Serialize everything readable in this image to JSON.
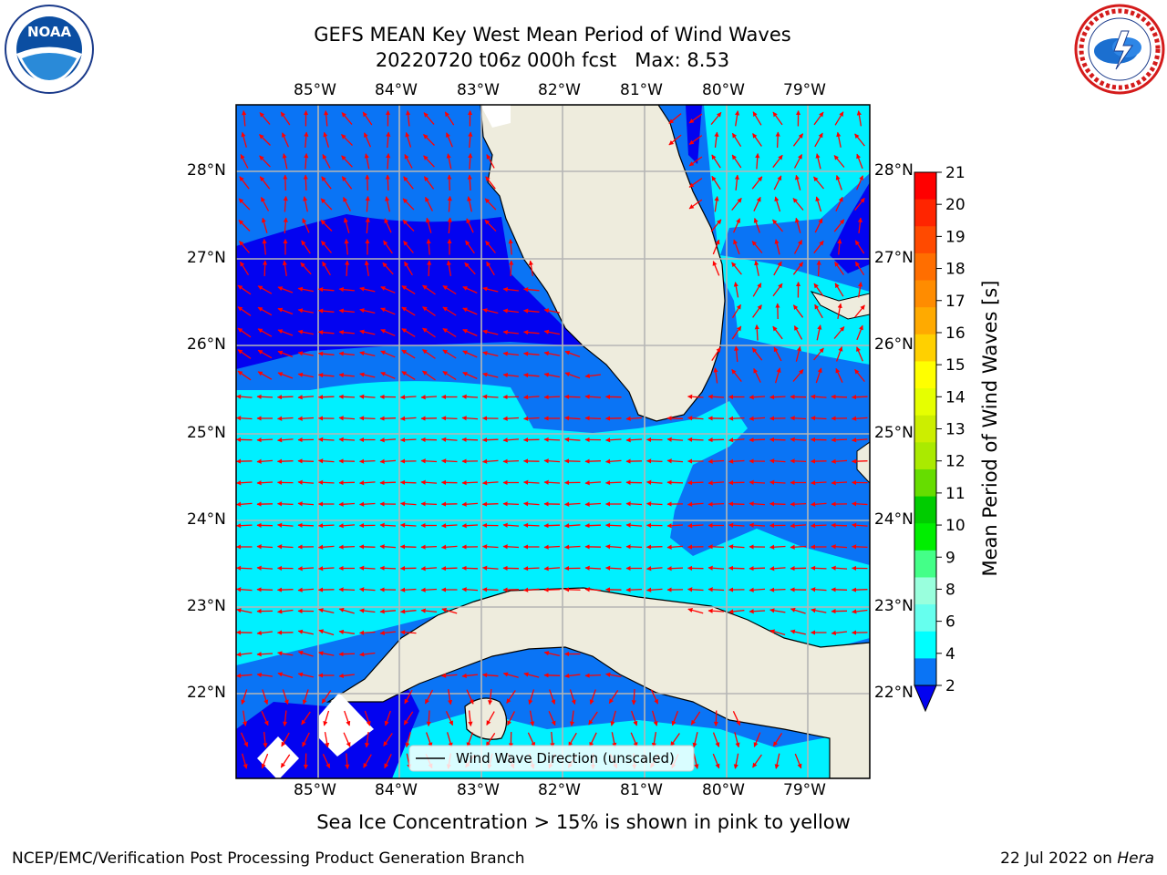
{
  "title": {
    "line1": "GEFS MEAN Key West Mean Period of Wind Waves",
    "line2": "20220720 t06z 000h fcst   Max: 8.53"
  },
  "logos": {
    "left": {
      "text": "NOAA",
      "ring_top": "NATIONAL OCEANIC AND ATMOSPHERIC ADMINISTRATION",
      "ring_bottom": "U.S. DEPARTMENT OF COMMERCE"
    },
    "right": {
      "ring": "NATIONAL WEATHER SERVICE"
    }
  },
  "map": {
    "lon_labels": [
      "85°W",
      "84°W",
      "83°W",
      "82°W",
      "81°W",
      "80°W",
      "79°W"
    ],
    "lat_labels": [
      "28°N",
      "27°N",
      "26°N",
      "25°N",
      "24°N",
      "23°N",
      "22°N"
    ],
    "legend_label": "Wind Wave Direction (unscaled)",
    "colors": {
      "ocean_2_4": "#0a74f5",
      "ocean_lt2": "#0303f0",
      "ocean_4_6": "#00f0ff",
      "land": "#eeecdd",
      "arrow": "#ff0000",
      "grid": "#b5b5b5"
    }
  },
  "colorbar": {
    "label": "Mean Period of Wind Waves [s]",
    "ticks": [
      "21",
      "20",
      "19",
      "18",
      "17",
      "16",
      "15",
      "14",
      "13",
      "12",
      "11",
      "10",
      "9",
      "8",
      "6",
      "4",
      "2"
    ],
    "colors": [
      "#ff0000",
      "#ff2500",
      "#ff4a00",
      "#ff6e00",
      "#ff8c00",
      "#ffaa00",
      "#ffd000",
      "#ffff00",
      "#e6ff00",
      "#ccee00",
      "#aaea00",
      "#66dd00",
      "#00cc00",
      "#00ee00",
      "#44ff88",
      "#99ffdd",
      "#66ffee",
      "#00ffff",
      "#0a74f5"
    ]
  },
  "note": "Sea Ice Concentration > 15% is shown in pink to yellow",
  "footer": {
    "left": "NCEP/EMC/Verification Post Processing Product Generation Branch",
    "right_prefix": "22 Jul 2022 on ",
    "right_host": "Hera"
  }
}
